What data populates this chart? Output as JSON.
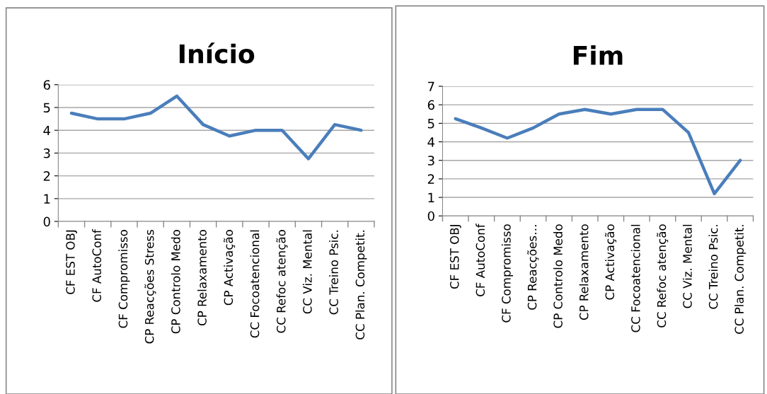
{
  "chart_data": [
    {
      "type": "line",
      "title": "Início",
      "categories": [
        "CF EST OBJ",
        "CF AutoConf",
        "CF Compromisso",
        "CP Reacções Stress",
        "CP Controlo Medo",
        "CP Relaxamento",
        "CP Activação",
        "CC Focoatencional",
        "CC Refoc atenção",
        "CC Viz. Mental",
        "CC Treino Psic.",
        "CC Plan. Competit."
      ],
      "series": [
        {
          "color": "#4a7ebb",
          "values": [
            4.75,
            4.5,
            4.5,
            4.75,
            5.5,
            4.25,
            3.75,
            4,
            4,
            2.75,
            4.25,
            4
          ]
        }
      ],
      "ylim": [
        0,
        6
      ],
      "yticks": [
        0,
        1,
        2,
        3,
        4,
        5,
        6
      ],
      "grid": "y",
      "legend": false
    },
    {
      "type": "line",
      "title": "Fim",
      "categories": [
        "CF EST OBJ",
        "CF AutoConf",
        "CF Compromisso",
        "CP Reacções…",
        "CP Controlo Medo",
        "CP Relaxamento",
        "CP Activação",
        "CC Focoatencional",
        "CC Refoc atenção",
        "CC Viz. Mental",
        "CC Treino Psic.",
        "CC Plan. Competit."
      ],
      "series": [
        {
          "color": "#4a7ebb",
          "values": [
            5.25,
            4.75,
            4.2,
            4.75,
            5.5,
            5.75,
            5.5,
            5.75,
            5.75,
            4.5,
            1.2,
            3.0
          ]
        }
      ],
      "ylim": [
        0,
        7
      ],
      "yticks": [
        0,
        1,
        2,
        3,
        4,
        5,
        6,
        7
      ],
      "grid": "y",
      "legend": false
    }
  ]
}
